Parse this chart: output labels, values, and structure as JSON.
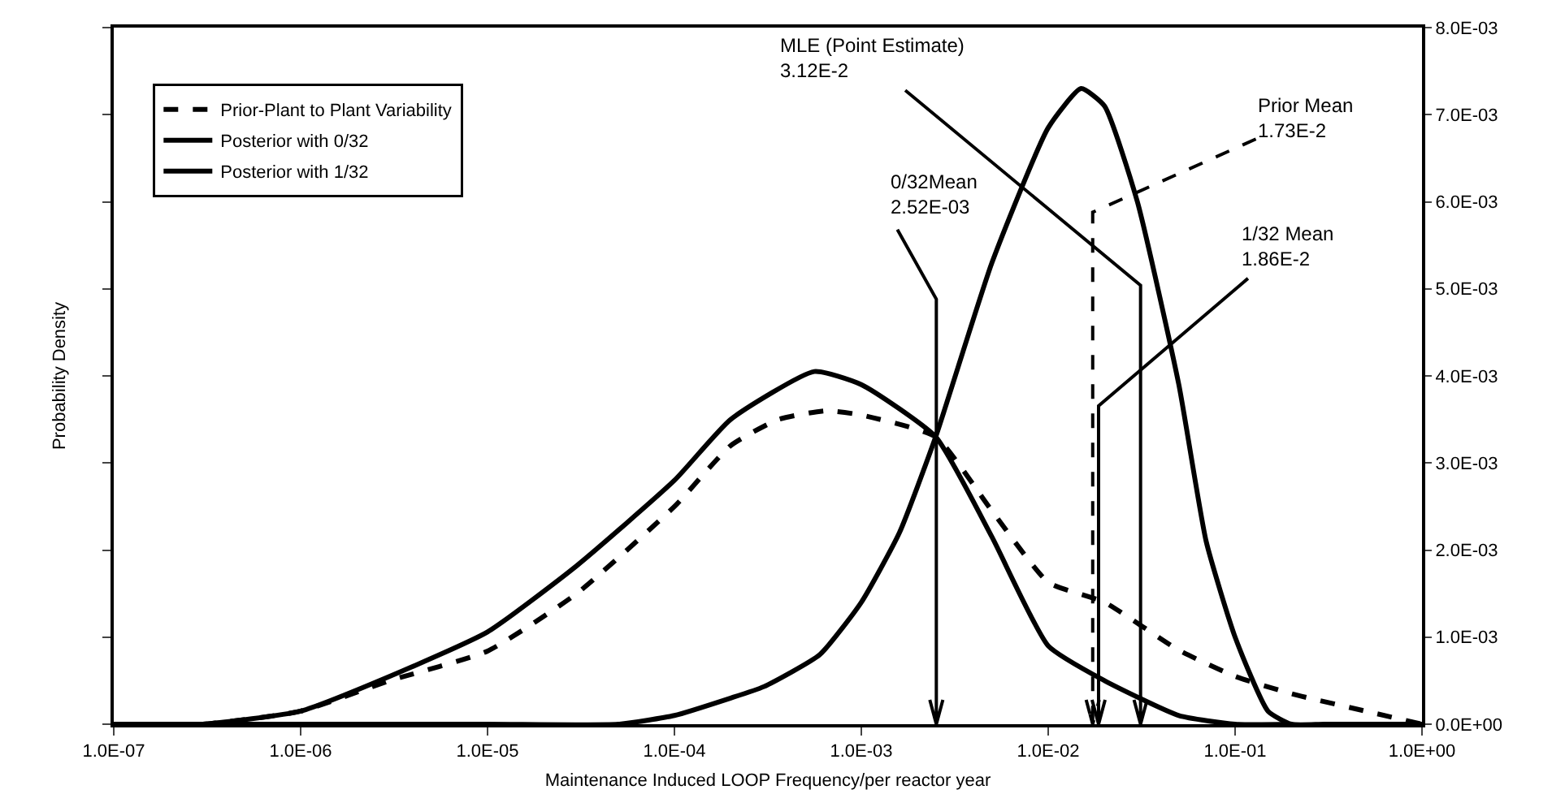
{
  "chart_data": {
    "type": "line",
    "xlabel": "Maintenance Induced LOOP Frequency/per reactor year",
    "ylabel": "Probability Density",
    "log": "x",
    "xlim": [
      1e-07,
      1
    ],
    "xticks": [
      {
        "value": 1e-07,
        "label": "1.0E-07"
      },
      {
        "value": 1e-06,
        "label": "1.0E-06"
      },
      {
        "value": 1e-05,
        "label": "1.0E-05"
      },
      {
        "value": 0.0001,
        "label": "1.0E-04"
      },
      {
        "value": 0.001,
        "label": "1.0E-03"
      },
      {
        "value": 0.01,
        "label": "1.0E-02"
      },
      {
        "value": 0.1,
        "label": "1.0E-01"
      },
      {
        "value": 1,
        "label": "1.0E+00"
      }
    ],
    "ylim": [
      0,
      0.008
    ],
    "yticks": [
      {
        "value": 0,
        "label": "0.0E+00"
      },
      {
        "value": 0.001,
        "label": "1.0E-03"
      },
      {
        "value": 0.002,
        "label": "2.0E-03"
      },
      {
        "value": 0.003,
        "label": "3.0E-03"
      },
      {
        "value": 0.004,
        "label": "4.0E-03"
      },
      {
        "value": 0.005,
        "label": "5.0E-03"
      },
      {
        "value": 0.006,
        "label": "6.0E-03"
      },
      {
        "value": 0.007,
        "label": "7.0E-03"
      },
      {
        "value": 0.008,
        "label": "8.0E-03"
      }
    ],
    "grid": false,
    "legend": "top left",
    "marker": "none",
    "series": [
      {
        "name": "Prior-Plant to Plant Variability",
        "color": "#000000",
        "line_style": "dashed",
        "x": [
          1e-07,
          3e-07,
          1e-06,
          3e-06,
          1e-05,
          3e-05,
          0.0001,
          0.0002,
          0.00036,
          0.00065,
          0.001,
          0.0025,
          0.005,
          0.01,
          0.02,
          0.05,
          0.1,
          0.2,
          0.5,
          1
        ],
        "values": [
          0,
          0,
          0.00015,
          0.0005,
          0.00084,
          0.0015,
          0.0025,
          0.0032,
          0.0035,
          0.0036,
          0.00355,
          0.0033,
          0.00245,
          0.00163,
          0.0014,
          0.00085,
          0.00055,
          0.00035,
          0.00015,
          0
        ]
      },
      {
        "name": "Posterior with 0/32",
        "color": "#000000",
        "line_style": "solid",
        "x": [
          1e-07,
          3e-07,
          1e-06,
          3e-06,
          1e-05,
          3e-05,
          0.0001,
          0.0002,
          0.00056,
          0.001,
          0.0025,
          0.005,
          0.01,
          0.02,
          0.05,
          0.1,
          0.2
        ],
        "values": [
          0,
          0,
          0.00015,
          0.00055,
          0.00106,
          0.00182,
          0.0028,
          0.0035,
          0.00405,
          0.0039,
          0.0033,
          0.00215,
          0.0009,
          0.0005,
          0.0001,
          0,
          0
        ]
      },
      {
        "name": "Posterior with 1/32",
        "color": "#000000",
        "line_style": "solid",
        "x": [
          1e-07,
          1e-05,
          5e-05,
          0.0001,
          0.0002,
          0.0003,
          0.0006,
          0.001,
          0.0016,
          0.0025,
          0.005,
          0.01,
          0.015,
          0.02,
          0.03,
          0.05,
          0.07,
          0.1,
          0.15,
          0.2,
          0.3,
          1
        ],
        "values": [
          0,
          0,
          0,
          0.0001,
          0.0003,
          0.00043,
          0.0008,
          0.0014,
          0.0022,
          0.0033,
          0.0053,
          0.00685,
          0.0073,
          0.0071,
          0.006,
          0.0039,
          0.0021,
          0.001,
          0.00015,
          0,
          0,
          0
        ]
      }
    ],
    "ref_lines": [
      {
        "axis": "x",
        "value": 0.0312,
        "label": "MLE (Point Estimate)\n3.12E-2",
        "line_style": "solid"
      },
      {
        "axis": "x",
        "value": 0.00252,
        "label": "0/32Mean\n2.52E-03",
        "line_style": "solid"
      },
      {
        "axis": "x",
        "value": 0.0173,
        "label": "Prior Mean\n1.73E-2",
        "line_style": "dashed"
      },
      {
        "axis": "x",
        "value": 0.0186,
        "label": "1/32 Mean\n1.86E-2",
        "line_style": "solid"
      }
    ]
  }
}
